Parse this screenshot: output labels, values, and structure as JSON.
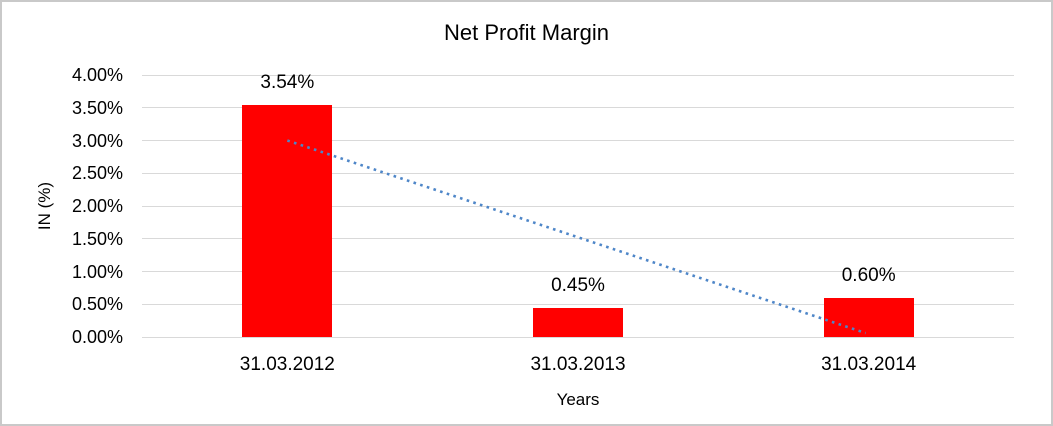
{
  "frame": {
    "border_color": "#c9c9c9",
    "background": "#ffffff"
  },
  "chart_data": {
    "type": "bar",
    "title": "Net Profit Margin",
    "xlabel": "Years",
    "ylabel": "IN (%)",
    "categories": [
      "31.03.2012",
      "31.03.2013",
      "31.03.2014"
    ],
    "series": [
      {
        "name": "Net Profit Margin",
        "values": [
          3.54,
          0.45,
          0.6
        ]
      }
    ],
    "data_labels": [
      "3.54%",
      "0.45%",
      "0.60%"
    ],
    "ylim": [
      0,
      4
    ],
    "ytick_step": 0.5,
    "ytick_labels": [
      "0.00%",
      "0.50%",
      "1.00%",
      "1.50%",
      "2.00%",
      "2.50%",
      "3.00%",
      "3.50%",
      "4.00%"
    ],
    "grid": true,
    "legend": "none",
    "colors": {
      "bar": "#ff0000",
      "gridline": "#d9d9d9",
      "trendline": "#4e86c8",
      "text": "#000000"
    },
    "trendline": {
      "shape": "linear",
      "line_style": "dotted",
      "start_value": 3.0,
      "end_value": 0.06
    }
  }
}
